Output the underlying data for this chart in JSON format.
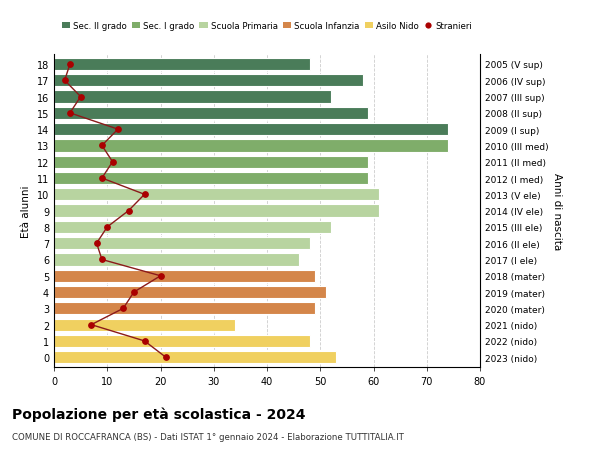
{
  "ages": [
    18,
    17,
    16,
    15,
    14,
    13,
    12,
    11,
    10,
    9,
    8,
    7,
    6,
    5,
    4,
    3,
    2,
    1,
    0
  ],
  "anni_nascita": [
    "2005 (V sup)",
    "2006 (IV sup)",
    "2007 (III sup)",
    "2008 (II sup)",
    "2009 (I sup)",
    "2010 (III med)",
    "2011 (II med)",
    "2012 (I med)",
    "2013 (V ele)",
    "2014 (IV ele)",
    "2015 (III ele)",
    "2016 (II ele)",
    "2017 (I ele)",
    "2018 (mater)",
    "2019 (mater)",
    "2020 (mater)",
    "2021 (nido)",
    "2022 (nido)",
    "2023 (nido)"
  ],
  "bar_values": [
    48,
    58,
    52,
    59,
    74,
    74,
    59,
    59,
    61,
    61,
    52,
    48,
    46,
    49,
    51,
    49,
    34,
    48,
    53
  ],
  "bar_colors": [
    "#4a7c59",
    "#4a7c59",
    "#4a7c59",
    "#4a7c59",
    "#4a7c59",
    "#7fad6a",
    "#7fad6a",
    "#7fad6a",
    "#b8d4a0",
    "#b8d4a0",
    "#b8d4a0",
    "#b8d4a0",
    "#b8d4a0",
    "#d4864a",
    "#d4864a",
    "#d4864a",
    "#f0d060",
    "#f0d060",
    "#f0d060"
  ],
  "stranieri_values": [
    3,
    2,
    5,
    3,
    12,
    9,
    11,
    9,
    17,
    14,
    10,
    8,
    9,
    20,
    15,
    13,
    7,
    17,
    21
  ],
  "title": "Popolazione per età scolastica - 2024",
  "subtitle": "COMUNE DI ROCCAFRANCA (BS) - Dati ISTAT 1° gennaio 2024 - Elaborazione TUTTITALIA.IT",
  "ylabel": "Età alunni",
  "right_ylabel": "Anni di nascita",
  "legend_labels": [
    "Sec. II grado",
    "Sec. I grado",
    "Scuola Primaria",
    "Scuola Infanzia",
    "Asilo Nido",
    "Stranieri"
  ],
  "legend_colors": [
    "#4a7c59",
    "#7fad6a",
    "#b8d4a0",
    "#d4864a",
    "#f0d060",
    "#aa0000"
  ],
  "bar_height": 0.75,
  "bg_color": "#ffffff",
  "grid_color": "#cccccc",
  "line_color": "#8b1a1a",
  "dot_color": "#aa0000"
}
